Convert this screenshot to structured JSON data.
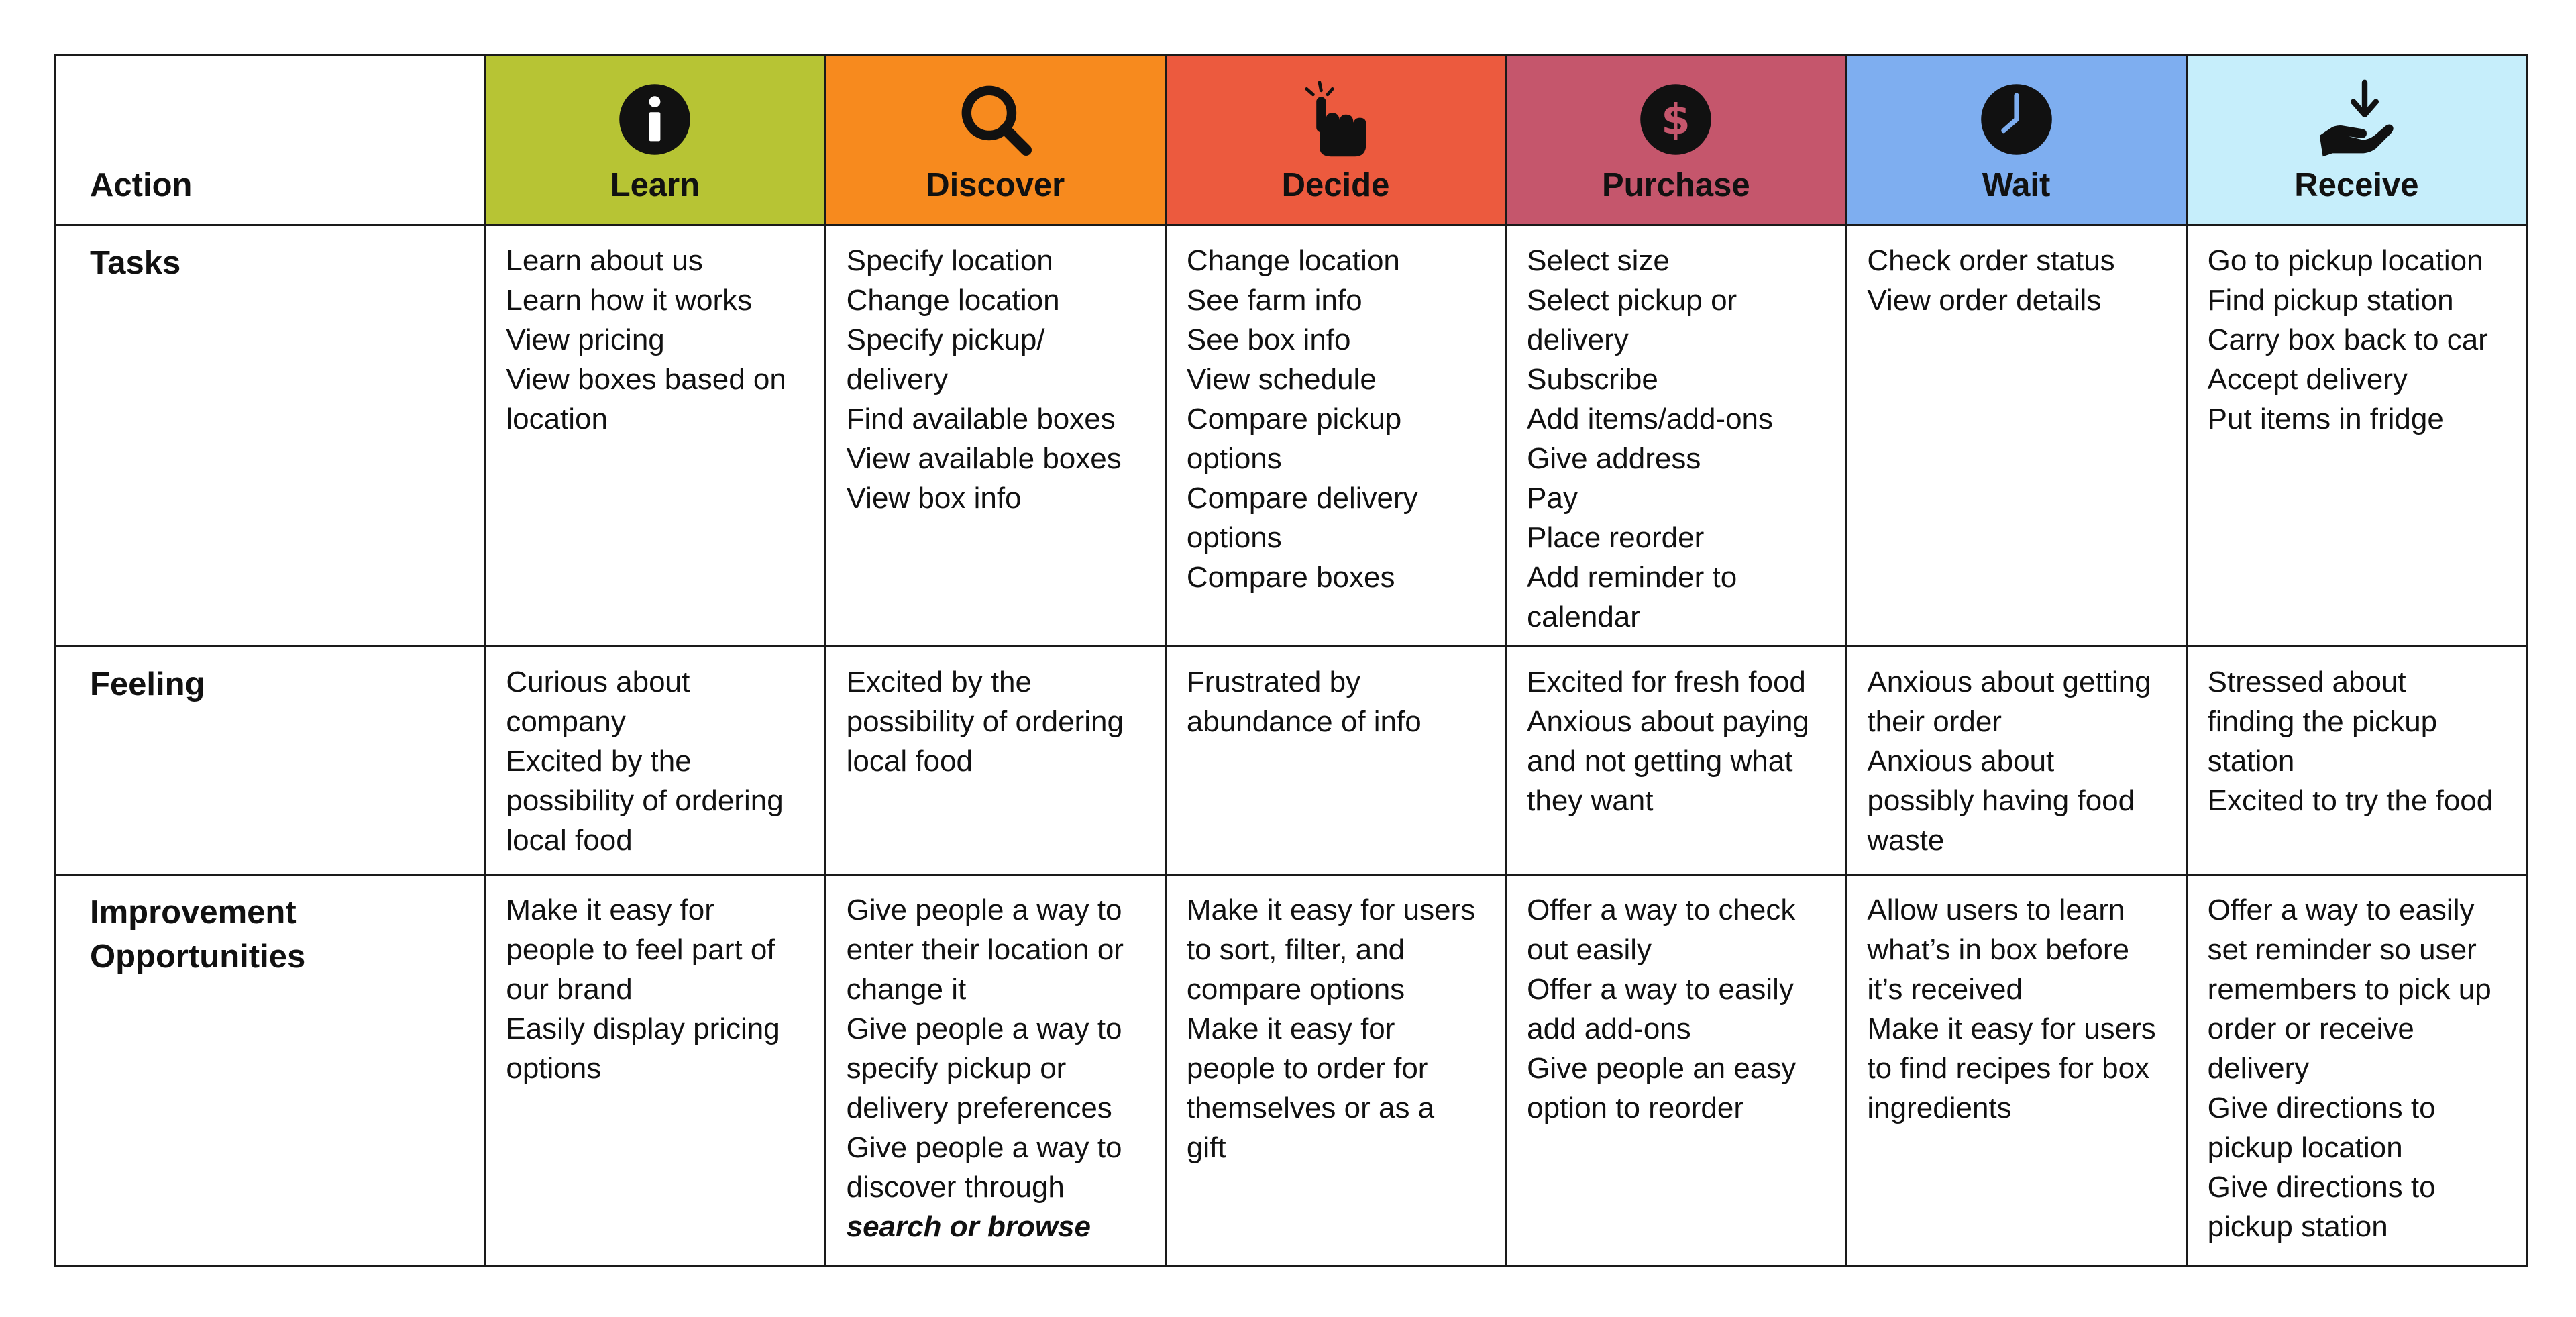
{
  "header": {
    "action_label": "Action",
    "stages": [
      {
        "name": "Learn",
        "icon": "info-icon",
        "color": "#B7C434"
      },
      {
        "name": "Discover",
        "icon": "magnifier-icon",
        "color": "#F78A1E"
      },
      {
        "name": "Decide",
        "icon": "pointing-hand-icon",
        "color": "#EC5A3E"
      },
      {
        "name": "Purchase",
        "icon": "dollar-icon",
        "color": "#C5566C"
      },
      {
        "name": "Wait",
        "icon": "clock-icon",
        "color": "#7EAEF0"
      },
      {
        "name": "Receive",
        "icon": "hand-receive-icon",
        "color": "#C6EEFB"
      }
    ]
  },
  "rows": {
    "tasks": {
      "label": "Tasks",
      "cells": [
        [
          "Learn about us",
          "Learn how it works",
          "View pricing",
          "View boxes based on",
          "location"
        ],
        [
          "Specify location",
          "Change location",
          "Specify pickup/",
          "delivery",
          "Find available boxes",
          "View available boxes",
          "View box info"
        ],
        [
          "Change location",
          "See farm info",
          "See box info",
          "View schedule",
          "Compare pickup",
          "options",
          "Compare delivery",
          "options",
          "Compare boxes"
        ],
        [
          "Select size",
          "Select pickup or",
          "delivery",
          "Subscribe",
          "Add items/add-ons",
          "Give address",
          "Pay",
          "Place reorder",
          "Add reminder to",
          "calendar"
        ],
        [
          "Check order status",
          "View order details"
        ],
        [
          "Go to pickup location",
          "Find pickup station",
          "Carry box back to car",
          "Accept delivery",
          "Put items in fridge"
        ]
      ]
    },
    "feeling": {
      "label": "Feeling",
      "cells": [
        [
          "Curious about",
          "company",
          "Excited by the",
          "possibility of ordering",
          "local food"
        ],
        [
          "Excited by the",
          "possibility of ordering",
          "local food"
        ],
        [
          "Frustrated by",
          "abundance of info"
        ],
        [
          "Excited for fresh food",
          "Anxious about paying",
          "and not getting what",
          "they want"
        ],
        [
          "Anxious about getting",
          "their order",
          "Anxious about",
          "possibly having food",
          "waste"
        ],
        [
          "Stressed about",
          "finding the pickup",
          "station",
          "Excited to try the food"
        ]
      ]
    },
    "improvement": {
      "label_line1": "Improvement",
      "label_line2": "Opportunities",
      "cells": [
        [
          "Make it easy for",
          "people to feel part of",
          "our brand",
          "Easily display pricing",
          "options"
        ],
        [
          "Give people a way to",
          "enter their location or",
          "change it",
          "Give people a way to",
          "specify pickup or",
          "delivery preferences",
          "Give people a way to",
          "discover through",
          "search or browse"
        ],
        [
          "Make it easy for users",
          "to sort, filter, and",
          "compare options",
          "Make it easy for",
          "people to order for",
          "themselves or as a",
          "gift"
        ],
        [
          "Offer a way to check",
          "out easily",
          "Offer a way to easily",
          "add add-ons",
          "Give people an easy",
          "option to reorder"
        ],
        [
          "Allow users to learn",
          "what’s in box before",
          "it’s received",
          "Make it easy for users",
          "to find recipes for box",
          "ingredients"
        ],
        [
          "Offer a way to easily",
          "set reminder so user",
          "remembers to pick up",
          "order or receive",
          "delivery",
          "Give directions to",
          "pickup location",
          "Give directions to",
          "pickup station"
        ]
      ]
    }
  }
}
